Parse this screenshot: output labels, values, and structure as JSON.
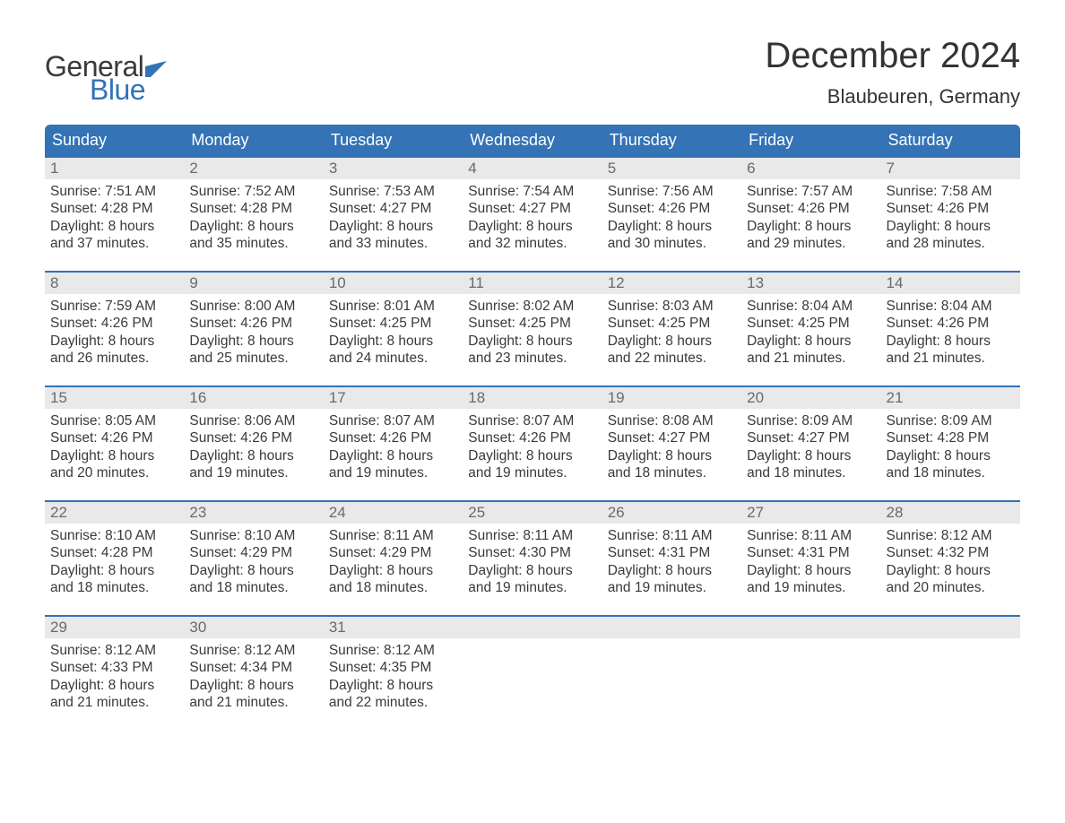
{
  "brand": {
    "word1": "General",
    "word2": "Blue",
    "word1_color": "#3a3a3a",
    "word2_color": "#3373b6",
    "flag_color": "#3373b6"
  },
  "header": {
    "month_title": "December 2024",
    "location": "Blaubeuren, Germany"
  },
  "colors": {
    "header_bg": "#3373b6",
    "header_text": "#ffffff",
    "day_strip_bg": "#e9e9e9",
    "day_num_color": "#6a6a6a",
    "body_text": "#3a3a3a",
    "week_border": "#3373b6",
    "page_bg": "#ffffff"
  },
  "weekdays": [
    "Sunday",
    "Monday",
    "Tuesday",
    "Wednesday",
    "Thursday",
    "Friday",
    "Saturday"
  ],
  "weeks": [
    [
      {
        "n": "1",
        "sunrise": "Sunrise: 7:51 AM",
        "sunset": "Sunset: 4:28 PM",
        "d1": "Daylight: 8 hours",
        "d2": "and 37 minutes."
      },
      {
        "n": "2",
        "sunrise": "Sunrise: 7:52 AM",
        "sunset": "Sunset: 4:28 PM",
        "d1": "Daylight: 8 hours",
        "d2": "and 35 minutes."
      },
      {
        "n": "3",
        "sunrise": "Sunrise: 7:53 AM",
        "sunset": "Sunset: 4:27 PM",
        "d1": "Daylight: 8 hours",
        "d2": "and 33 minutes."
      },
      {
        "n": "4",
        "sunrise": "Sunrise: 7:54 AM",
        "sunset": "Sunset: 4:27 PM",
        "d1": "Daylight: 8 hours",
        "d2": "and 32 minutes."
      },
      {
        "n": "5",
        "sunrise": "Sunrise: 7:56 AM",
        "sunset": "Sunset: 4:26 PM",
        "d1": "Daylight: 8 hours",
        "d2": "and 30 minutes."
      },
      {
        "n": "6",
        "sunrise": "Sunrise: 7:57 AM",
        "sunset": "Sunset: 4:26 PM",
        "d1": "Daylight: 8 hours",
        "d2": "and 29 minutes."
      },
      {
        "n": "7",
        "sunrise": "Sunrise: 7:58 AM",
        "sunset": "Sunset: 4:26 PM",
        "d1": "Daylight: 8 hours",
        "d2": "and 28 minutes."
      }
    ],
    [
      {
        "n": "8",
        "sunrise": "Sunrise: 7:59 AM",
        "sunset": "Sunset: 4:26 PM",
        "d1": "Daylight: 8 hours",
        "d2": "and 26 minutes."
      },
      {
        "n": "9",
        "sunrise": "Sunrise: 8:00 AM",
        "sunset": "Sunset: 4:26 PM",
        "d1": "Daylight: 8 hours",
        "d2": "and 25 minutes."
      },
      {
        "n": "10",
        "sunrise": "Sunrise: 8:01 AM",
        "sunset": "Sunset: 4:25 PM",
        "d1": "Daylight: 8 hours",
        "d2": "and 24 minutes."
      },
      {
        "n": "11",
        "sunrise": "Sunrise: 8:02 AM",
        "sunset": "Sunset: 4:25 PM",
        "d1": "Daylight: 8 hours",
        "d2": "and 23 minutes."
      },
      {
        "n": "12",
        "sunrise": "Sunrise: 8:03 AM",
        "sunset": "Sunset: 4:25 PM",
        "d1": "Daylight: 8 hours",
        "d2": "and 22 minutes."
      },
      {
        "n": "13",
        "sunrise": "Sunrise: 8:04 AM",
        "sunset": "Sunset: 4:25 PM",
        "d1": "Daylight: 8 hours",
        "d2": "and 21 minutes."
      },
      {
        "n": "14",
        "sunrise": "Sunrise: 8:04 AM",
        "sunset": "Sunset: 4:26 PM",
        "d1": "Daylight: 8 hours",
        "d2": "and 21 minutes."
      }
    ],
    [
      {
        "n": "15",
        "sunrise": "Sunrise: 8:05 AM",
        "sunset": "Sunset: 4:26 PM",
        "d1": "Daylight: 8 hours",
        "d2": "and 20 minutes."
      },
      {
        "n": "16",
        "sunrise": "Sunrise: 8:06 AM",
        "sunset": "Sunset: 4:26 PM",
        "d1": "Daylight: 8 hours",
        "d2": "and 19 minutes."
      },
      {
        "n": "17",
        "sunrise": "Sunrise: 8:07 AM",
        "sunset": "Sunset: 4:26 PM",
        "d1": "Daylight: 8 hours",
        "d2": "and 19 minutes."
      },
      {
        "n": "18",
        "sunrise": "Sunrise: 8:07 AM",
        "sunset": "Sunset: 4:26 PM",
        "d1": "Daylight: 8 hours",
        "d2": "and 19 minutes."
      },
      {
        "n": "19",
        "sunrise": "Sunrise: 8:08 AM",
        "sunset": "Sunset: 4:27 PM",
        "d1": "Daylight: 8 hours",
        "d2": "and 18 minutes."
      },
      {
        "n": "20",
        "sunrise": "Sunrise: 8:09 AM",
        "sunset": "Sunset: 4:27 PM",
        "d1": "Daylight: 8 hours",
        "d2": "and 18 minutes."
      },
      {
        "n": "21",
        "sunrise": "Sunrise: 8:09 AM",
        "sunset": "Sunset: 4:28 PM",
        "d1": "Daylight: 8 hours",
        "d2": "and 18 minutes."
      }
    ],
    [
      {
        "n": "22",
        "sunrise": "Sunrise: 8:10 AM",
        "sunset": "Sunset: 4:28 PM",
        "d1": "Daylight: 8 hours",
        "d2": "and 18 minutes."
      },
      {
        "n": "23",
        "sunrise": "Sunrise: 8:10 AM",
        "sunset": "Sunset: 4:29 PM",
        "d1": "Daylight: 8 hours",
        "d2": "and 18 minutes."
      },
      {
        "n": "24",
        "sunrise": "Sunrise: 8:11 AM",
        "sunset": "Sunset: 4:29 PM",
        "d1": "Daylight: 8 hours",
        "d2": "and 18 minutes."
      },
      {
        "n": "25",
        "sunrise": "Sunrise: 8:11 AM",
        "sunset": "Sunset: 4:30 PM",
        "d1": "Daylight: 8 hours",
        "d2": "and 19 minutes."
      },
      {
        "n": "26",
        "sunrise": "Sunrise: 8:11 AM",
        "sunset": "Sunset: 4:31 PM",
        "d1": "Daylight: 8 hours",
        "d2": "and 19 minutes."
      },
      {
        "n": "27",
        "sunrise": "Sunrise: 8:11 AM",
        "sunset": "Sunset: 4:31 PM",
        "d1": "Daylight: 8 hours",
        "d2": "and 19 minutes."
      },
      {
        "n": "28",
        "sunrise": "Sunrise: 8:12 AM",
        "sunset": "Sunset: 4:32 PM",
        "d1": "Daylight: 8 hours",
        "d2": "and 20 minutes."
      }
    ],
    [
      {
        "n": "29",
        "sunrise": "Sunrise: 8:12 AM",
        "sunset": "Sunset: 4:33 PM",
        "d1": "Daylight: 8 hours",
        "d2": "and 21 minutes."
      },
      {
        "n": "30",
        "sunrise": "Sunrise: 8:12 AM",
        "sunset": "Sunset: 4:34 PM",
        "d1": "Daylight: 8 hours",
        "d2": "and 21 minutes."
      },
      {
        "n": "31",
        "sunrise": "Sunrise: 8:12 AM",
        "sunset": "Sunset: 4:35 PM",
        "d1": "Daylight: 8 hours",
        "d2": "and 22 minutes."
      },
      {
        "empty": true
      },
      {
        "empty": true
      },
      {
        "empty": true
      },
      {
        "empty": true
      }
    ]
  ]
}
